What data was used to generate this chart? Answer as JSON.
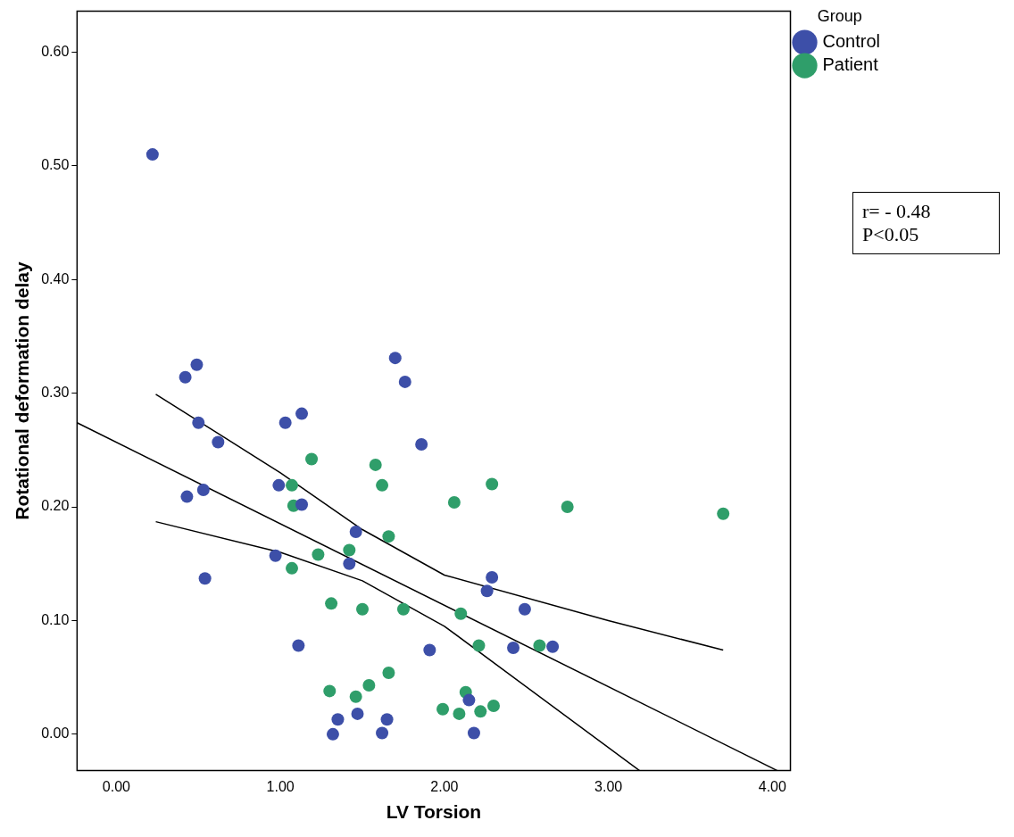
{
  "chart_data": {
    "type": "scatter",
    "xlabel": "LV Torsion",
    "ylabel": "Rotational deformation delay",
    "legend_title": "Group",
    "legend": "top right",
    "marker": "circle",
    "grid": false,
    "xlim": [
      -0.24,
      4.11
    ],
    "xticks": [
      {
        "value": 0,
        "label": "0.00"
      },
      {
        "value": 1,
        "label": "1.00"
      },
      {
        "value": 2,
        "label": "2.00"
      },
      {
        "value": 3,
        "label": "3.00"
      },
      {
        "value": 4,
        "label": "4.00"
      }
    ],
    "ylim": [
      -0.032,
      0.636
    ],
    "yticks": [
      {
        "value": 0,
        "label": "0.00"
      },
      {
        "value": 0.1,
        "label": "0.10"
      },
      {
        "value": 0.2,
        "label": "0.20"
      },
      {
        "value": 0.3,
        "label": "0.30"
      },
      {
        "value": 0.4,
        "label": "0.40"
      },
      {
        "value": 0.5,
        "label": "0.50"
      },
      {
        "value": 0.6,
        "label": "0.60"
      }
    ],
    "annotations": [
      "r= - 0.48",
      "P<0.05"
    ],
    "series": [
      {
        "name": "Control",
        "color": "#3d4fa8",
        "x": [
          0.22,
          0.42,
          0.49,
          0.5,
          0.62,
          0.43,
          0.53,
          0.54,
          1.03,
          1.13,
          1.7,
          1.76,
          1.86,
          0.99,
          1.13,
          1.46,
          1.42,
          0.97,
          1.11,
          1.91,
          2.29,
          2.26,
          2.49,
          2.42,
          2.66,
          1.35,
          1.32,
          1.47,
          1.65,
          1.62,
          2.15,
          2.18
        ],
        "values": [
          0.51,
          0.314,
          0.325,
          0.274,
          0.257,
          0.209,
          0.215,
          0.137,
          0.274,
          0.282,
          0.331,
          0.31,
          0.255,
          0.219,
          0.202,
          0.178,
          0.15,
          0.157,
          0.078,
          0.074,
          0.138,
          0.126,
          0.11,
          0.076,
          0.077,
          0.013,
          0.0,
          0.018,
          0.013,
          0.001,
          0.03,
          0.001
        ]
      },
      {
        "name": "Patient",
        "color": "#2f9e6a",
        "x": [
          1.19,
          1.58,
          1.62,
          2.06,
          1.07,
          1.08,
          1.66,
          1.42,
          1.23,
          1.07,
          1.31,
          1.5,
          1.75,
          2.75,
          2.29,
          3.7,
          2.1,
          2.21,
          2.58,
          1.66,
          1.54,
          1.46,
          1.3,
          2.13,
          1.99,
          2.09,
          2.22,
          2.3
        ],
        "values": [
          0.242,
          0.237,
          0.219,
          0.204,
          0.219,
          0.201,
          0.174,
          0.162,
          0.158,
          0.146,
          0.115,
          0.11,
          0.11,
          0.2,
          0.22,
          0.194,
          0.106,
          0.078,
          0.078,
          0.054,
          0.043,
          0.033,
          0.038,
          0.037,
          0.022,
          0.018,
          0.02,
          0.025
        ]
      },
      {
        "type": "line",
        "color": "#000000",
        "marker": "none",
        "x": [
          -0.24,
          4.03
        ],
        "values": [
          0.274,
          -0.032
        ]
      },
      {
        "type": "line",
        "color": "#000000",
        "marker": "none",
        "x": [
          0.24,
          1.0,
          1.5,
          2.0,
          3.0,
          3.7
        ],
        "values": [
          0.299,
          0.23,
          0.18,
          0.14,
          0.1,
          0.074
        ]
      },
      {
        "type": "line",
        "color": "#000000",
        "marker": "none",
        "x": [
          0.24,
          1.0,
          1.5,
          2.0,
          3.19
        ],
        "values": [
          0.187,
          0.16,
          0.135,
          0.095,
          -0.032
        ]
      }
    ]
  }
}
